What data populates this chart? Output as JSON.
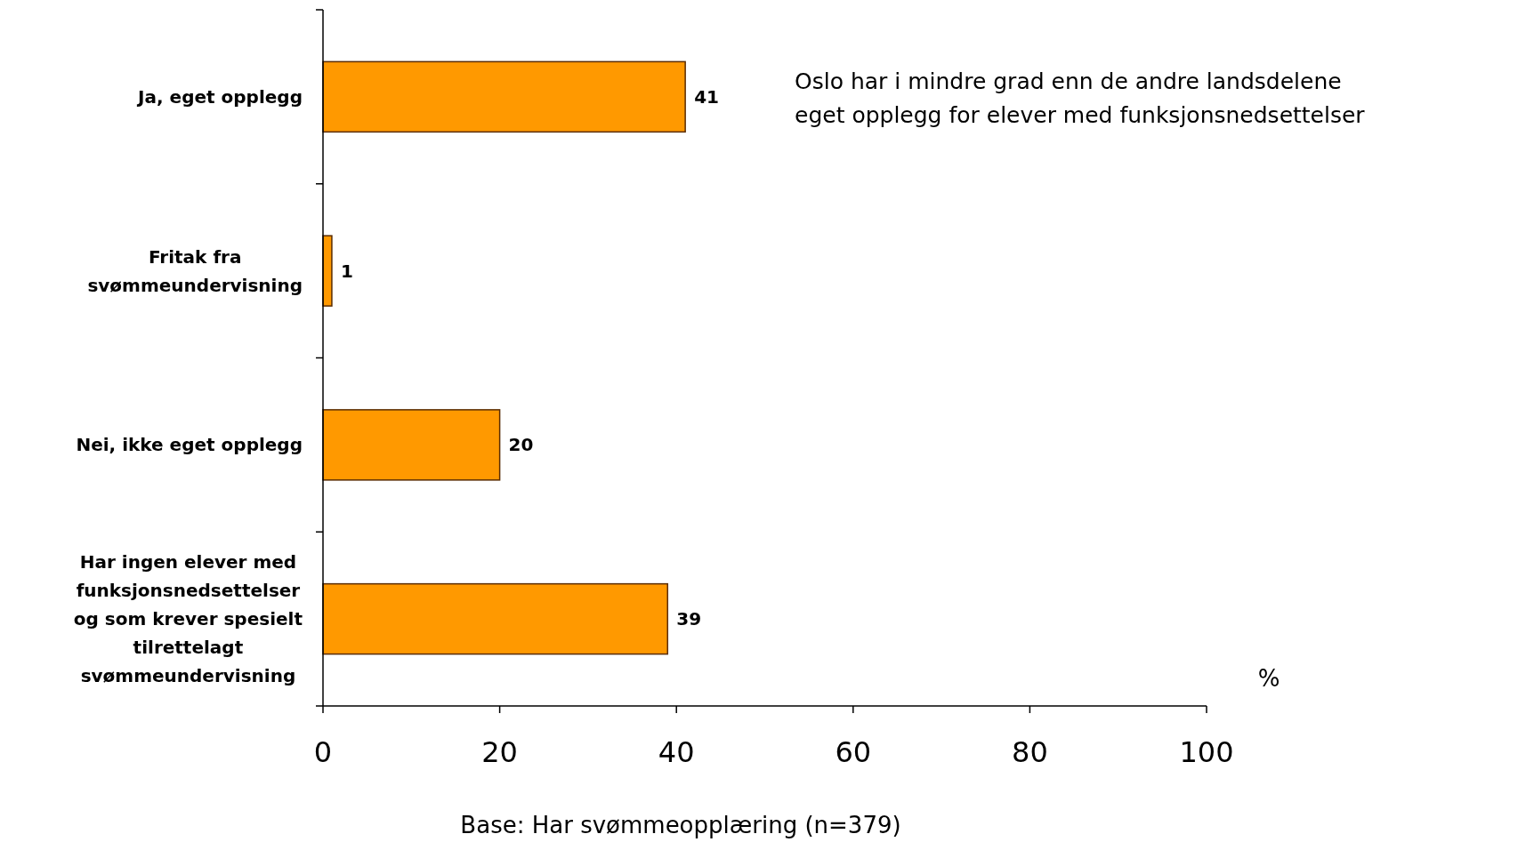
{
  "chart_data": {
    "type": "bar",
    "orientation": "horizontal",
    "categories": [
      "Ja, eget opplegg",
      "Fritak fra\nsvømmeundervisning",
      "Nei, ikke eget opplegg",
      "Har ingen elever med\nfunksjonsnedsettelser\nog som krever spesielt\ntilrettelagt\nsvømmeundervisning"
    ],
    "values": [
      41,
      1,
      20,
      39
    ],
    "color": "#ff9900",
    "data_labels": true,
    "xlim": [
      0,
      100
    ],
    "xticks": [
      0,
      20,
      40,
      60,
      80,
      100
    ],
    "xlabel": "%",
    "grid": false,
    "annotations": [
      "Oslo har i mindre grad enn de andre landsdelene\neget opplegg for elever med funksjonsnedsettelser",
      "Base: Har svømmeopplæring (n=379)"
    ]
  }
}
